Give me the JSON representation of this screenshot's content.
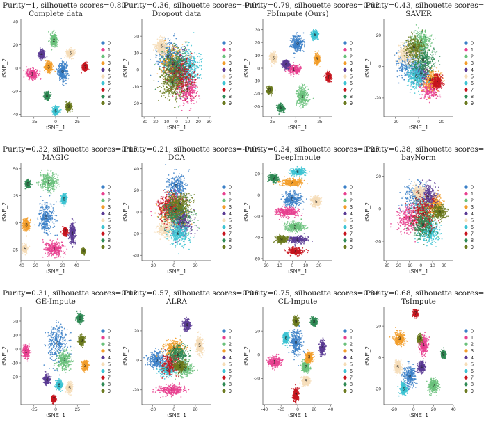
{
  "figure": {
    "palette": [
      "#3a7fc7",
      "#e8408f",
      "#6ac17b",
      "#f29d2a",
      "#5a3b94",
      "#f6ddb8",
      "#3cc3d2",
      "#c7151f",
      "#2f8a55",
      "#6b7a1f"
    ],
    "axis_x_label": "tSNE_1",
    "axis_y_label": "tSNE_2",
    "legend": [
      "0",
      "1",
      "2",
      "3",
      "4",
      "5",
      "6",
      "7",
      "8",
      "9"
    ]
  },
  "chart_data": [
    {
      "type": "scatter",
      "method": "Complete data",
      "score_text": "Purity=1, silhouette scores=0.80",
      "purity": 1,
      "silhouette": 0.8,
      "xlim": [
        -40,
        40
      ],
      "ylim": [
        -42,
        42
      ],
      "xticks": [
        -25,
        0,
        25
      ],
      "yticks": [
        -40,
        -20,
        0,
        20,
        40
      ],
      "clusters": [
        {
          "id": 0,
          "x": 8,
          "y": -3,
          "sx": 5,
          "sy": 7
        },
        {
          "id": 1,
          "x": -27,
          "y": -5,
          "sx": 6,
          "sy": 4
        },
        {
          "id": 2,
          "x": -2,
          "y": 24,
          "sx": 3.5,
          "sy": 5
        },
        {
          "id": 3,
          "x": -8,
          "y": 1,
          "sx": 4,
          "sy": 4
        },
        {
          "id": 4,
          "x": -16,
          "y": 12,
          "sx": 3,
          "sy": 3
        },
        {
          "id": 5,
          "x": 17,
          "y": 13,
          "sx": 4,
          "sy": 3
        },
        {
          "id": 6,
          "x": 0,
          "y": -37,
          "sx": 3,
          "sy": 3
        },
        {
          "id": 7,
          "x": 34,
          "y": 1,
          "sx": 2.5,
          "sy": 3
        },
        {
          "id": 8,
          "x": -10,
          "y": -24,
          "sx": 3,
          "sy": 3
        },
        {
          "id": 9,
          "x": 15,
          "y": -33,
          "sx": 3,
          "sy": 2.5
        }
      ]
    },
    {
      "type": "scatter",
      "method": "Dropout data",
      "score_text": "Purity=0.36, silhouette scores=-0.04",
      "purity": 0.36,
      "silhouette": -0.04,
      "xlim": [
        -32,
        32
      ],
      "ylim": [
        -28,
        30
      ],
      "xticks": [
        -30,
        -20,
        -10,
        0,
        10,
        20,
        30
      ],
      "yticks": [
        -20,
        -10,
        0,
        10,
        20
      ],
      "clusters": [
        {
          "id": 0,
          "x": -8,
          "y": 8,
          "sx": 9,
          "sy": 9
        },
        {
          "id": 1,
          "x": 10,
          "y": -12,
          "sx": 8,
          "sy": 7
        },
        {
          "id": 2,
          "x": -2,
          "y": -2,
          "sx": 10,
          "sy": 10
        },
        {
          "id": 3,
          "x": -3,
          "y": 4,
          "sx": 10,
          "sy": 9
        },
        {
          "id": 4,
          "x": 2,
          "y": 0,
          "sx": 10,
          "sy": 10
        },
        {
          "id": 5,
          "x": -14,
          "y": 14,
          "sx": 5,
          "sy": 4
        },
        {
          "id": 6,
          "x": 12,
          "y": 2,
          "sx": 9,
          "sy": 9
        },
        {
          "id": 7,
          "x": 4,
          "y": -4,
          "sx": 11,
          "sy": 10
        },
        {
          "id": 8,
          "x": 0,
          "y": 2,
          "sx": 11,
          "sy": 10
        },
        {
          "id": 9,
          "x": -4,
          "y": -8,
          "sx": 10,
          "sy": 9
        }
      ]
    },
    {
      "type": "scatter",
      "method": "PbImpute (Ours)",
      "score_text": "Purity=0.79, silhouette scores=0.62",
      "purity": 0.79,
      "silhouette": 0.62,
      "xlim": [
        -34,
        38
      ],
      "ylim": [
        -38,
        38
      ],
      "xticks": [
        -25,
        0,
        25
      ],
      "yticks": [
        -30,
        -20,
        -10,
        0,
        10,
        20,
        30
      ],
      "clusters": [
        {
          "id": 0,
          "x": 2,
          "y": 19,
          "sx": 6,
          "sy": 6
        },
        {
          "id": 1,
          "x": -2,
          "y": -1,
          "sx": 6,
          "sy": 3
        },
        {
          "id": 2,
          "x": 7,
          "y": -22,
          "sx": 5,
          "sy": 7
        },
        {
          "id": 3,
          "x": 22,
          "y": 7,
          "sx": 2.5,
          "sy": 3.5
        },
        {
          "id": 4,
          "x": -10,
          "y": 3,
          "sx": 3,
          "sy": 3
        },
        {
          "id": 5,
          "x": -23,
          "y": 8,
          "sx": 3,
          "sy": 3.5
        },
        {
          "id": 6,
          "x": 20,
          "y": 26,
          "sx": 3,
          "sy": 3
        },
        {
          "id": 7,
          "x": 34,
          "y": -7,
          "sx": 2.5,
          "sy": 3
        },
        {
          "id": 8,
          "x": -15,
          "y": -31,
          "sx": 3,
          "sy": 2.5
        },
        {
          "id": 9,
          "x": -27,
          "y": -17,
          "sx": 2.5,
          "sy": 2.5
        }
      ]
    },
    {
      "type": "scatter",
      "method": "SAVER",
      "score_text": "Purity=0.43, silhouette scores=-0.02",
      "purity": 0.43,
      "silhouette": -0.02,
      "xlim": [
        -30,
        30
      ],
      "ylim": [
        -32,
        30
      ],
      "xticks": [
        -20,
        0,
        20
      ],
      "yticks": [
        -20,
        0,
        20
      ],
      "clusters": [
        {
          "id": 0,
          "x": -8,
          "y": 2,
          "sx": 10,
          "sy": 10
        },
        {
          "id": 1,
          "x": 10,
          "y": -14,
          "sx": 7,
          "sy": 6
        },
        {
          "id": 2,
          "x": 2,
          "y": 16,
          "sx": 8,
          "sy": 6
        },
        {
          "id": 3,
          "x": 10,
          "y": -8,
          "sx": 8,
          "sy": 6
        },
        {
          "id": 4,
          "x": 2,
          "y": -4,
          "sx": 6,
          "sy": 5
        },
        {
          "id": 5,
          "x": -10,
          "y": 8,
          "sx": 7,
          "sy": 6
        },
        {
          "id": 6,
          "x": -2,
          "y": -6,
          "sx": 7,
          "sy": 7
        },
        {
          "id": 7,
          "x": 16,
          "y": -10,
          "sx": 4,
          "sy": 4
        },
        {
          "id": 8,
          "x": 4,
          "y": 4,
          "sx": 9,
          "sy": 9
        },
        {
          "id": 9,
          "x": -4,
          "y": 12,
          "sx": 7,
          "sy": 6
        }
      ]
    },
    {
      "type": "scatter",
      "method": "MAGIC",
      "score_text": "Purity=0.32, silhouette scores=0.15",
      "purity": 0.32,
      "silhouette": 0.15,
      "xlim": [
        -40,
        60
      ],
      "ylim": [
        -35,
        55
      ],
      "xticks": [
        -40,
        -20,
        0,
        20,
        40
      ],
      "yticks": [
        -25,
        0,
        25,
        50
      ],
      "clusters": [
        {
          "id": 0,
          "x": -4,
          "y": 5,
          "sx": 10,
          "sy": 14
        },
        {
          "id": 1,
          "x": 8,
          "y": -24,
          "sx": 12,
          "sy": 6
        },
        {
          "id": 2,
          "x": 0,
          "y": 38,
          "sx": 11,
          "sy": 8
        },
        {
          "id": 3,
          "x": -32,
          "y": -2,
          "sx": 4,
          "sy": 5
        },
        {
          "id": 4,
          "x": 34,
          "y": -10,
          "sx": 4,
          "sy": 8
        },
        {
          "id": 5,
          "x": -34,
          "y": -24,
          "sx": 3,
          "sy": 3
        },
        {
          "id": 6,
          "x": 22,
          "y": 22,
          "sx": 3,
          "sy": 4
        },
        {
          "id": 7,
          "x": 24,
          "y": -8,
          "sx": 3,
          "sy": 3
        },
        {
          "id": 8,
          "x": -30,
          "y": 36,
          "sx": 3,
          "sy": 3
        },
        {
          "id": 9,
          "x": 50,
          "y": -26,
          "sx": 2,
          "sy": 2
        }
      ]
    },
    {
      "type": "scatter",
      "method": "DCA",
      "score_text": "Purity=0.21, silhouette scores=-0.04",
      "purity": 0.21,
      "silhouette": -0.04,
      "xlim": [
        -30,
        35
      ],
      "ylim": [
        -45,
        45
      ],
      "xticks": [
        -20,
        0,
        20
      ],
      "yticks": [
        -40,
        -20,
        0,
        20,
        40
      ],
      "clusters": [
        {
          "id": 0,
          "x": 2,
          "y": 24,
          "sx": 8,
          "sy": 10
        },
        {
          "id": 1,
          "x": -2,
          "y": 6,
          "sx": 10,
          "sy": 11
        },
        {
          "id": 2,
          "x": 6,
          "y": -6,
          "sx": 10,
          "sy": 11
        },
        {
          "id": 3,
          "x": 0,
          "y": 0,
          "sx": 11,
          "sy": 12
        },
        {
          "id": 4,
          "x": 8,
          "y": -10,
          "sx": 9,
          "sy": 11
        },
        {
          "id": 5,
          "x": -8,
          "y": -16,
          "sx": 6,
          "sy": 6
        },
        {
          "id": 6,
          "x": 4,
          "y": -20,
          "sx": 9,
          "sy": 9
        },
        {
          "id": 7,
          "x": -4,
          "y": 4,
          "sx": 10,
          "sy": 11
        },
        {
          "id": 8,
          "x": 2,
          "y": 2,
          "sx": 10,
          "sy": 11
        },
        {
          "id": 9,
          "x": 6,
          "y": 8,
          "sx": 10,
          "sy": 10
        }
      ]
    },
    {
      "type": "scatter",
      "method": "DeepImpute",
      "score_text": "Purity=0.34, silhouette scores=0.25",
      "purity": 0.34,
      "silhouette": 0.25,
      "xlim": [
        -22,
        30
      ],
      "ylim": [
        -62,
        30
      ],
      "xticks": [
        -20,
        -10,
        0,
        10,
        20
      ],
      "yticks": [
        -60,
        -40,
        -20,
        0,
        20
      ],
      "clusters": [
        {
          "id": 0,
          "x": 0,
          "y": -4,
          "sx": 6,
          "sy": 6
        },
        {
          "id": 1,
          "x": -4,
          "y": -16,
          "sx": 7,
          "sy": 4
        },
        {
          "id": 2,
          "x": 2,
          "y": -30,
          "sx": 7,
          "sy": 4
        },
        {
          "id": 3,
          "x": 0,
          "y": 12,
          "sx": 7,
          "sy": 3
        },
        {
          "id": 4,
          "x": 4,
          "y": -42,
          "sx": 6,
          "sy": 3
        },
        {
          "id": 5,
          "x": 18,
          "y": -6,
          "sx": 3,
          "sy": 4
        },
        {
          "id": 6,
          "x": 4,
          "y": 22,
          "sx": 5,
          "sy": 3
        },
        {
          "id": 7,
          "x": 2,
          "y": -53,
          "sx": 5,
          "sy": 3
        },
        {
          "id": 8,
          "x": -14,
          "y": 16,
          "sx": 3,
          "sy": 3
        },
        {
          "id": 9,
          "x": -8,
          "y": -42,
          "sx": 4,
          "sy": 3
        }
      ]
    },
    {
      "type": "scatter",
      "method": "bayNorm",
      "score_text": "Purity=0.38, silhouette scores=-0.02",
      "purity": 0.38,
      "silhouette": -0.02,
      "xlim": [
        -32,
        28
      ],
      "ylim": [
        -32,
        28
      ],
      "xticks": [
        -30,
        -20,
        -10,
        0,
        10,
        20
      ],
      "yticks": [
        -20,
        0,
        20
      ],
      "clusters": [
        {
          "id": 0,
          "x": -4,
          "y": 6,
          "sx": 10,
          "sy": 9
        },
        {
          "id": 1,
          "x": -10,
          "y": -6,
          "sx": 9,
          "sy": 8
        },
        {
          "id": 2,
          "x": 4,
          "y": -2,
          "sx": 8,
          "sy": 8
        },
        {
          "id": 3,
          "x": 12,
          "y": 2,
          "sx": 6,
          "sy": 6
        },
        {
          "id": 4,
          "x": 6,
          "y": 8,
          "sx": 7,
          "sy": 7
        },
        {
          "id": 5,
          "x": -2,
          "y": 10,
          "sx": 5,
          "sy": 4
        },
        {
          "id": 6,
          "x": 8,
          "y": -14,
          "sx": 8,
          "sy": 6
        },
        {
          "id": 7,
          "x": 2,
          "y": -4,
          "sx": 9,
          "sy": 9
        },
        {
          "id": 8,
          "x": 2,
          "y": -10,
          "sx": 8,
          "sy": 7
        },
        {
          "id": 9,
          "x": 16,
          "y": -2,
          "sx": 5,
          "sy": 4
        }
      ]
    },
    {
      "type": "scatter",
      "method": "GE-Impute",
      "score_text": "Purity=0.31, silhouette scores=0.12",
      "purity": 0.31,
      "silhouette": 0.12,
      "xlim": [
        -40,
        40
      ],
      "ylim": [
        -40,
        30
      ],
      "xticks": [
        -25,
        0,
        25
      ],
      "yticks": [
        -20,
        -10,
        0,
        10,
        20
      ],
      "clusters": [
        {
          "id": 0,
          "x": 2,
          "y": 4,
          "sx": 10,
          "sy": 14
        },
        {
          "id": 1,
          "x": -34,
          "y": -2,
          "sx": 3,
          "sy": 4
        },
        {
          "id": 2,
          "x": 10,
          "y": -8,
          "sx": 7,
          "sy": 6
        },
        {
          "id": 3,
          "x": 34,
          "y": -12,
          "sx": 3,
          "sy": 3
        },
        {
          "id": 4,
          "x": -10,
          "y": -22,
          "sx": 3,
          "sy": 3
        },
        {
          "id": 5,
          "x": 16,
          "y": -28,
          "sx": 3,
          "sy": 3
        },
        {
          "id": 6,
          "x": 4,
          "y": -26,
          "sx": 3,
          "sy": 3
        },
        {
          "id": 7,
          "x": -2,
          "y": -36,
          "sx": 2,
          "sy": 2
        },
        {
          "id": 8,
          "x": 28,
          "y": 22,
          "sx": 3,
          "sy": 3
        },
        {
          "id": 9,
          "x": 30,
          "y": 6,
          "sx": 3,
          "sy": 3
        }
      ]
    },
    {
      "type": "scatter",
      "method": "ALRA",
      "score_text": "Purity=0.57, silhouette scores=0.06",
      "purity": 0.57,
      "silhouette": 0.06,
      "xlim": [
        -30,
        35
      ],
      "ylim": [
        -30,
        36
      ],
      "xticks": [
        -20,
        0,
        20
      ],
      "yticks": [
        -20,
        0,
        20
      ],
      "clusters": [
        {
          "id": 0,
          "x": -16,
          "y": 0,
          "sx": 7,
          "sy": 5
        },
        {
          "id": 1,
          "x": -2,
          "y": -20,
          "sx": 11,
          "sy": 3
        },
        {
          "id": 2,
          "x": 10,
          "y": -6,
          "sx": 6,
          "sy": 4
        },
        {
          "id": 3,
          "x": 0,
          "y": 8,
          "sx": 9,
          "sy": 5
        },
        {
          "id": 4,
          "x": 12,
          "y": 24,
          "sx": 3,
          "sy": 3
        },
        {
          "id": 5,
          "x": 24,
          "y": 10,
          "sx": 3,
          "sy": 5
        },
        {
          "id": 6,
          "x": -6,
          "y": -6,
          "sx": 6,
          "sy": 4
        },
        {
          "id": 7,
          "x": -2,
          "y": -2,
          "sx": 8,
          "sy": 6
        },
        {
          "id": 8,
          "x": 4,
          "y": 4,
          "sx": 8,
          "sy": 6
        },
        {
          "id": 9,
          "x": 6,
          "y": -4,
          "sx": 5,
          "sy": 3
        }
      ]
    },
    {
      "type": "scatter",
      "method": "CL-Impute",
      "score_text": "Purity=0.75, silhouette scores=0.34",
      "purity": 0.75,
      "silhouette": 0.34,
      "xlim": [
        -42,
        42
      ],
      "ylim": [
        -42,
        40
      ],
      "xticks": [
        -40,
        -20,
        0,
        20,
        40
      ],
      "yticks": [
        -20,
        0,
        20
      ],
      "clusters": [
        {
          "id": 0,
          "x": -2,
          "y": 10,
          "sx": 6,
          "sy": 10
        },
        {
          "id": 1,
          "x": -28,
          "y": -6,
          "sx": 7,
          "sy": 4
        },
        {
          "id": 2,
          "x": 10,
          "y": -10,
          "sx": 4,
          "sy": 4
        },
        {
          "id": 3,
          "x": 14,
          "y": -2,
          "sx": 4,
          "sy": 4
        },
        {
          "id": 4,
          "x": 30,
          "y": 6,
          "sx": 3,
          "sy": 5
        },
        {
          "id": 5,
          "x": 10,
          "y": -22,
          "sx": 4,
          "sy": 3
        },
        {
          "id": 6,
          "x": -14,
          "y": 14,
          "sx": 3,
          "sy": 4
        },
        {
          "id": 7,
          "x": -2,
          "y": -34,
          "sx": 3,
          "sy": 5
        },
        {
          "id": 8,
          "x": 20,
          "y": 28,
          "sx": 3,
          "sy": 3
        },
        {
          "id": 9,
          "x": -2,
          "y": 28,
          "sx": 3,
          "sy": 3
        }
      ]
    },
    {
      "type": "scatter",
      "method": "TsImpute",
      "score_text": "Purity=0.68, silhouette scores=0.52",
      "purity": 0.68,
      "silhouette": 0.52,
      "xlim": [
        -30,
        40
      ],
      "ylim": [
        -30,
        32
      ],
      "xticks": [
        -20,
        0,
        20,
        40
      ],
      "yticks": [
        -20,
        0,
        20
      ],
      "clusters": [
        {
          "id": 0,
          "x": -4,
          "y": -12,
          "sx": 6,
          "sy": 6
        },
        {
          "id": 1,
          "x": 10,
          "y": 8,
          "sx": 4,
          "sy": 5
        },
        {
          "id": 2,
          "x": 20,
          "y": -18,
          "sx": 4,
          "sy": 4
        },
        {
          "id": 3,
          "x": -14,
          "y": 12,
          "sx": 5,
          "sy": 4
        },
        {
          "id": 4,
          "x": 8,
          "y": -6,
          "sx": 3,
          "sy": 3
        },
        {
          "id": 5,
          "x": -16,
          "y": -6,
          "sx": 3,
          "sy": 3
        },
        {
          "id": 6,
          "x": -10,
          "y": -20,
          "sx": 3,
          "sy": 3
        },
        {
          "id": 7,
          "x": 2,
          "y": 28,
          "sx": 2,
          "sy": 2
        },
        {
          "id": 8,
          "x": 30,
          "y": 2,
          "sx": 2,
          "sy": 2
        },
        {
          "id": 9,
          "x": 6,
          "y": 12,
          "sx": 2,
          "sy": 2
        }
      ]
    }
  ]
}
